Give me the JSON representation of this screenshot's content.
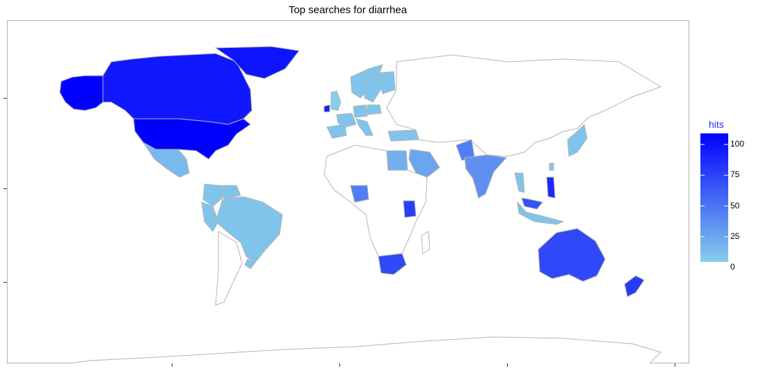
{
  "title": "Top searches for diarrhea",
  "legend": {
    "title": "hits",
    "ticks": [
      "100",
      "75",
      "50",
      "25",
      "0"
    ],
    "low_color": "#87ceeb",
    "high_color": "#0000ff"
  },
  "map_data": {
    "type": "choropleth",
    "variable": "hits",
    "scale": [
      0,
      100
    ],
    "border_color": "#b3b3b3",
    "no_data_color": "#ffffff",
    "regions": [
      {
        "name": "United States",
        "hits": 100
      },
      {
        "name": "Canada",
        "hits": 88
      },
      {
        "name": "Greenland",
        "hits": 90
      },
      {
        "name": "Ireland",
        "hits": 85
      },
      {
        "name": "Philippines",
        "hits": 80
      },
      {
        "name": "New Zealand",
        "hits": 72
      },
      {
        "name": "Kenya",
        "hits": 70
      },
      {
        "name": "Malaysia",
        "hits": 60
      },
      {
        "name": "South Africa",
        "hits": 65
      },
      {
        "name": "Australia",
        "hits": 65
      },
      {
        "name": "Pakistan",
        "hits": 40
      },
      {
        "name": "Nigeria",
        "hits": 40
      },
      {
        "name": "India",
        "hits": 30
      },
      {
        "name": "Saudi Arabia",
        "hits": 20
      },
      {
        "name": "Egypt",
        "hits": 15
      },
      {
        "name": "Mexico",
        "hits": 10
      },
      {
        "name": "Brazil",
        "hits": 5
      },
      {
        "name": "Colombia",
        "hits": 5
      },
      {
        "name": "Peru",
        "hits": 5
      },
      {
        "name": "Venezuela",
        "hits": 5
      },
      {
        "name": "Uruguay",
        "hits": 5
      },
      {
        "name": "Spain",
        "hits": 5
      },
      {
        "name": "France",
        "hits": 5
      },
      {
        "name": "Italy",
        "hits": 5
      },
      {
        "name": "Germany",
        "hits": 5
      },
      {
        "name": "Poland",
        "hits": 5
      },
      {
        "name": "Sweden",
        "hits": 5
      },
      {
        "name": "Norway",
        "hits": 5
      },
      {
        "name": "Finland",
        "hits": 5
      },
      {
        "name": "Turkey",
        "hits": 5
      },
      {
        "name": "Thailand",
        "hits": 5
      },
      {
        "name": "Japan",
        "hits": 5
      },
      {
        "name": "Indonesia",
        "hits": 5
      },
      {
        "name": "Taiwan",
        "hits": 5
      },
      {
        "name": "United Kingdom",
        "hits": 0
      }
    ]
  }
}
